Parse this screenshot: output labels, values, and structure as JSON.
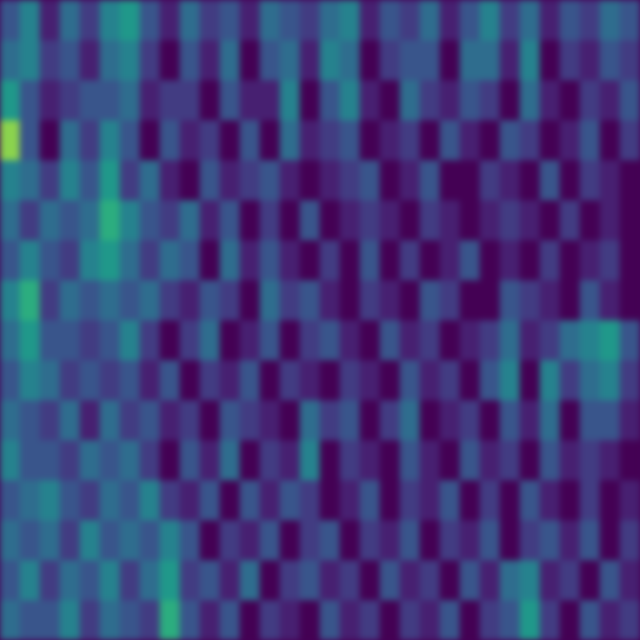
{
  "chart_data": {
    "type": "heatmap",
    "tick_labels": false,
    "grid": false,
    "zlim": [
      0,
      1
    ],
    "cells": [
      [
        0.3,
        0.5,
        0.1,
        0.4,
        0.2,
        0.5,
        0.6,
        0.3,
        0.1,
        0.4,
        0.2,
        0.3,
        0.1,
        0.4,
        0.3,
        0.2,
        0.4,
        0.5,
        0.1,
        0.3,
        0.2,
        0.4,
        0.1,
        0.3,
        0.5,
        0.2,
        0.4,
        0.1,
        0.3,
        0.2,
        0.4,
        0.3
      ],
      [
        0.4,
        0.5,
        0.2,
        0.3,
        0.1,
        0.4,
        0.5,
        0.2,
        0.0,
        0.3,
        0.1,
        0.4,
        0.0,
        0.3,
        0.4,
        0.1,
        0.5,
        0.4,
        0.0,
        0.2,
        0.3,
        0.3,
        0.0,
        0.4,
        0.4,
        0.1,
        0.5,
        0.0,
        0.2,
        0.1,
        0.3,
        0.2
      ],
      [
        0.6,
        0.3,
        0.1,
        0.2,
        0.3,
        0.3,
        0.4,
        0.1,
        0.2,
        0.2,
        0.0,
        0.3,
        0.1,
        0.1,
        0.5,
        0.0,
        0.3,
        0.5,
        0.1,
        0.0,
        0.4,
        0.2,
        0.1,
        0.3,
        0.2,
        0.0,
        0.4,
        0.1,
        0.0,
        0.2,
        0.1,
        0.3
      ],
      [
        0.9,
        0.3,
        0.0,
        0.4,
        0.2,
        0.5,
        0.3,
        0.0,
        0.3,
        0.1,
        0.2,
        0.0,
        0.3,
        0.0,
        0.4,
        0.1,
        0.2,
        0.3,
        0.0,
        0.1,
        0.2,
        0.0,
        0.3,
        0.1,
        0.0,
        0.3,
        0.2,
        0.0,
        0.1,
        0.3,
        0.0,
        0.2
      ],
      [
        0.5,
        0.4,
        0.2,
        0.5,
        0.3,
        0.6,
        0.2,
        0.4,
        0.1,
        0.0,
        0.3,
        0.1,
        0.2,
        0.3,
        0.1,
        0.0,
        0.1,
        0.2,
        0.3,
        0.0,
        0.1,
        0.3,
        0.0,
        0.0,
        0.2,
        0.1,
        0.0,
        0.3,
        0.0,
        0.2,
        0.1,
        0.0
      ],
      [
        0.4,
        0.2,
        0.4,
        0.3,
        0.4,
        0.7,
        0.5,
        0.3,
        0.2,
        0.4,
        0.1,
        0.3,
        0.0,
        0.2,
        0.0,
        0.3,
        0.0,
        0.1,
        0.2,
        0.1,
        0.0,
        0.2,
        0.1,
        0.0,
        0.1,
        0.2,
        0.1,
        0.0,
        0.2,
        0.0,
        0.1,
        0.0
      ],
      [
        0.3,
        0.5,
        0.3,
        0.2,
        0.5,
        0.6,
        0.4,
        0.2,
        0.4,
        0.3,
        0.0,
        0.4,
        0.1,
        0.3,
        0.1,
        0.0,
        0.2,
        0.0,
        0.3,
        0.0,
        0.2,
        0.0,
        0.1,
        0.3,
        0.0,
        0.1,
        0.0,
        0.2,
        0.0,
        0.1,
        0.2,
        0.0
      ],
      [
        0.5,
        0.7,
        0.2,
        0.4,
        0.3,
        0.4,
        0.3,
        0.4,
        0.2,
        0.1,
        0.3,
        0.2,
        0.0,
        0.4,
        0.2,
        0.3,
        0.1,
        0.0,
        0.2,
        0.1,
        0.0,
        0.3,
        0.2,
        0.0,
        0.0,
        0.3,
        0.2,
        0.1,
        0.0,
        0.3,
        0.1,
        0.0
      ],
      [
        0.4,
        0.6,
        0.3,
        0.3,
        0.2,
        0.3,
        0.5,
        0.2,
        0.0,
        0.2,
        0.4,
        0.0,
        0.1,
        0.3,
        0.0,
        0.2,
        0.3,
        0.1,
        0.0,
        0.3,
        0.1,
        0.2,
        0.0,
        0.1,
        0.2,
        0.4,
        0.1,
        0.2,
        0.4,
        0.5,
        0.6,
        0.3
      ],
      [
        0.3,
        0.5,
        0.4,
        0.2,
        0.3,
        0.2,
        0.3,
        0.1,
        0.3,
        0.0,
        0.2,
        0.1,
        0.3,
        0.0,
        0.2,
        0.1,
        0.0,
        0.2,
        0.1,
        0.0,
        0.3,
        0.1,
        0.2,
        0.0,
        0.3,
        0.5,
        0.0,
        0.5,
        0.2,
        0.4,
        0.5,
        0.2
      ],
      [
        0.4,
        0.3,
        0.2,
        0.4,
        0.1,
        0.4,
        0.2,
        0.3,
        0.1,
        0.2,
        0.0,
        0.3,
        0.2,
        0.1,
        0.0,
        0.4,
        0.2,
        0.3,
        0.0,
        0.2,
        0.4,
        0.0,
        0.1,
        0.2,
        0.0,
        0.3,
        0.1,
        0.4,
        0.0,
        0.3,
        0.3,
        0.1
      ],
      [
        0.5,
        0.3,
        0.3,
        0.2,
        0.4,
        0.3,
        0.4,
        0.2,
        0.0,
        0.3,
        0.1,
        0.4,
        0.0,
        0.2,
        0.1,
        0.5,
        0.0,
        0.2,
        0.1,
        0.0,
        0.3,
        0.1,
        0.0,
        0.3,
        0.1,
        0.2,
        0.0,
        0.3,
        0.1,
        0.2,
        0.1,
        0.0
      ],
      [
        0.3,
        0.4,
        0.5,
        0.3,
        0.2,
        0.4,
        0.3,
        0.5,
        0.2,
        0.1,
        0.3,
        0.0,
        0.3,
        0.1,
        0.3,
        0.2,
        0.0,
        0.1,
        0.3,
        0.0,
        0.2,
        0.1,
        0.3,
        0.0,
        0.2,
        0.0,
        0.3,
        0.1,
        0.0,
        0.2,
        0.0,
        0.1
      ],
      [
        0.4,
        0.3,
        0.4,
        0.2,
        0.5,
        0.3,
        0.4,
        0.3,
        0.5,
        0.3,
        0.0,
        0.2,
        0.1,
        0.3,
        0.0,
        0.2,
        0.3,
        0.0,
        0.2,
        0.1,
        0.3,
        0.0,
        0.2,
        0.1,
        0.3,
        0.0,
        0.2,
        0.3,
        0.1,
        0.3,
        0.0,
        0.2
      ],
      [
        0.3,
        0.5,
        0.2,
        0.4,
        0.3,
        0.5,
        0.2,
        0.4,
        0.6,
        0.2,
        0.3,
        0.1,
        0.4,
        0.0,
        0.2,
        0.3,
        0.1,
        0.2,
        0.0,
        0.3,
        0.1,
        0.2,
        0.0,
        0.3,
        0.1,
        0.4,
        0.5,
        0.1,
        0.2,
        0.0,
        0.3,
        0.1
      ],
      [
        0.4,
        0.3,
        0.3,
        0.5,
        0.2,
        0.4,
        0.3,
        0.2,
        0.7,
        0.3,
        0.1,
        0.3,
        0.0,
        0.2,
        0.1,
        0.0,
        0.3,
        0.1,
        0.2,
        0.0,
        0.2,
        0.1,
        0.3,
        0.0,
        0.2,
        0.3,
        0.6,
        0.2,
        0.0,
        0.3,
        0.1,
        0.2
      ]
    ]
  }
}
